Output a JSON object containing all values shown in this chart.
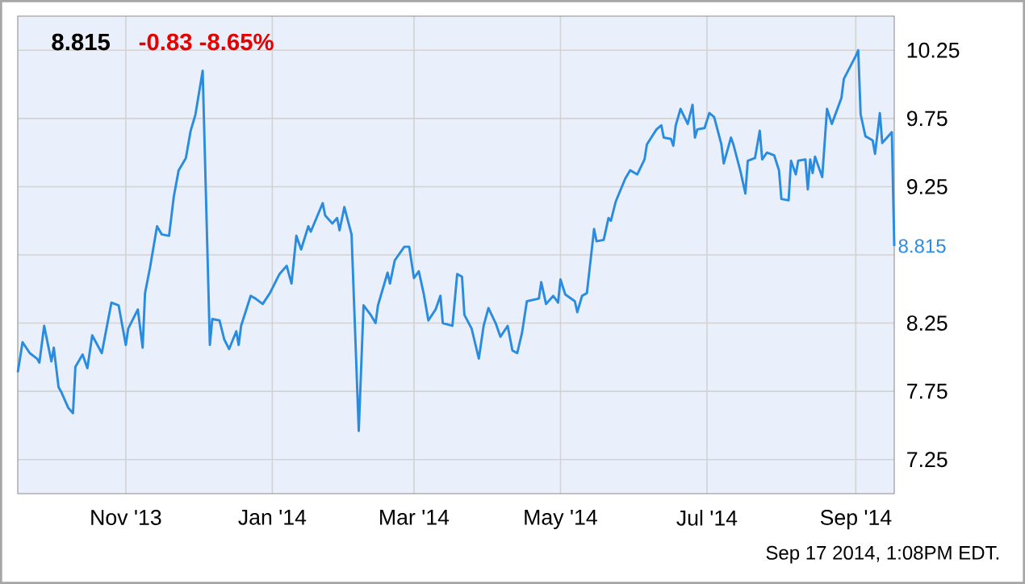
{
  "chart_data": {
    "type": "line",
    "title": "8.815",
    "subtitle": "-0.83  -8.65%",
    "annotations": [
      {
        "text": "8.815",
        "x": "2014-09-17",
        "y": 8.815
      },
      "Sep 17 2014, 1:08PM EDT."
    ],
    "x": [
      "2013-09-17",
      "2013-09-19",
      "2013-09-22",
      "2013-09-25",
      "2013-09-26",
      "2013-09-28",
      "2013-10-01",
      "2013-10-02",
      "2013-10-04",
      "2013-10-05",
      "2013-10-08",
      "2013-10-10",
      "2013-10-11",
      "2013-10-14",
      "2013-10-16",
      "2013-10-18",
      "2013-10-22",
      "2013-10-26",
      "2013-10-29",
      "2013-11-01",
      "2013-11-02",
      "2013-11-06",
      "2013-11-08",
      "2013-11-09",
      "2013-11-11",
      "2013-11-14",
      "2013-11-16",
      "2013-11-19",
      "2013-11-21",
      "2013-11-23",
      "2013-11-26",
      "2013-11-28",
      "2013-11-30",
      "2013-12-03",
      "2013-12-06",
      "2013-12-07",
      "2013-12-10",
      "2013-12-12",
      "2013-12-14",
      "2013-12-17",
      "2013-12-18",
      "2013-12-19",
      "2013-12-23",
      "2013-12-25",
      "2013-12-28",
      "2013-12-31",
      "2014-01-04",
      "2014-01-07",
      "2014-01-09",
      "2014-01-11",
      "2014-01-13",
      "2014-01-16",
      "2014-01-17",
      "2014-01-22",
      "2014-01-23",
      "2014-01-26",
      "2014-01-28",
      "2014-01-29",
      "2014-01-31",
      "2014-02-03",
      "2014-02-06",
      "2014-02-08",
      "2014-02-11",
      "2014-02-13",
      "2014-02-14",
      "2014-02-18",
      "2014-02-19",
      "2014-02-21",
      "2014-02-25",
      "2014-02-27",
      "2014-03-01",
      "2014-03-03",
      "2014-03-05",
      "2014-03-07",
      "2014-03-10",
      "2014-03-12",
      "2014-03-13",
      "2014-03-17",
      "2014-03-19",
      "2014-03-21",
      "2014-03-22",
      "2014-03-25",
      "2014-03-28",
      "2014-03-30",
      "2014-04-01",
      "2014-04-04",
      "2014-04-06",
      "2014-04-09",
      "2014-04-11",
      "2014-04-13",
      "2014-04-15",
      "2014-04-17",
      "2014-04-22",
      "2014-04-23",
      "2014-04-25",
      "2014-04-28",
      "2014-04-30",
      "2014-05-01",
      "2014-05-03",
      "2014-05-07",
      "2014-05-08",
      "2014-05-10",
      "2014-05-12",
      "2014-05-15",
      "2014-05-16",
      "2014-05-19",
      "2014-05-21",
      "2014-05-22",
      "2014-05-24",
      "2014-05-28",
      "2014-05-30",
      "2014-06-02",
      "2014-06-05",
      "2014-06-06",
      "2014-06-10",
      "2014-06-12",
      "2014-06-13",
      "2014-06-16",
      "2014-06-17",
      "2014-06-18",
      "2014-06-20",
      "2014-06-23",
      "2014-06-25",
      "2014-06-26",
      "2014-06-27",
      "2014-06-30",
      "2014-07-02",
      "2014-07-04",
      "2014-07-07",
      "2014-07-08",
      "2014-07-11",
      "2014-07-12",
      "2014-07-15",
      "2014-07-17",
      "2014-07-18",
      "2014-07-21",
      "2014-07-23",
      "2014-07-24",
      "2014-07-26",
      "2014-07-29",
      "2014-07-31",
      "2014-08-01",
      "2014-08-04",
      "2014-08-05",
      "2014-08-07",
      "2014-08-08",
      "2014-08-11",
      "2014-08-12",
      "2014-08-13",
      "2014-08-14",
      "2014-08-15",
      "2014-08-18",
      "2014-08-20",
      "2014-08-22",
      "2014-08-26",
      "2014-08-27",
      "2014-09-01",
      "2014-09-02",
      "2014-09-03",
      "2014-09-05",
      "2014-09-08",
      "2014-09-09",
      "2014-09-11",
      "2014-09-12",
      "2014-09-16",
      "2014-09-17"
    ],
    "series": [
      {
        "color": "#2a8ce0",
        "values": [
          7.89,
          8.11,
          8.03,
          7.99,
          7.96,
          8.23,
          7.97,
          8.07,
          7.78,
          7.75,
          7.63,
          7.59,
          7.93,
          8.02,
          7.92,
          8.16,
          8.03,
          8.4,
          8.38,
          8.09,
          8.21,
          8.35,
          8.07,
          8.47,
          8.65,
          8.96,
          8.9,
          8.89,
          9.18,
          9.37,
          9.46,
          9.66,
          9.78,
          10.1,
          8.09,
          8.28,
          8.27,
          8.13,
          8.06,
          8.19,
          8.09,
          8.23,
          8.45,
          8.43,
          8.39,
          8.47,
          8.61,
          8.67,
          8.54,
          8.89,
          8.79,
          8.96,
          8.92,
          9.13,
          9.04,
          8.98,
          9.02,
          8.93,
          9.1,
          8.9,
          7.46,
          8.38,
          8.31,
          8.25,
          8.38,
          8.62,
          8.54,
          8.71,
          8.81,
          8.81,
          8.58,
          8.63,
          8.47,
          8.27,
          8.35,
          8.45,
          8.25,
          8.23,
          8.61,
          8.59,
          8.31,
          8.21,
          7.99,
          8.23,
          8.36,
          8.25,
          8.15,
          8.23,
          8.05,
          8.03,
          8.18,
          8.41,
          8.43,
          8.55,
          8.39,
          8.45,
          8.4,
          8.57,
          8.46,
          8.41,
          8.33,
          8.45,
          8.47,
          8.94,
          8.85,
          8.86,
          9.02,
          9.0,
          9.14,
          9.31,
          9.37,
          9.34,
          9.45,
          9.56,
          9.67,
          9.7,
          9.61,
          9.6,
          9.55,
          9.7,
          9.82,
          9.71,
          9.85,
          9.61,
          9.67,
          9.68,
          9.79,
          9.76,
          9.56,
          9.42,
          9.61,
          9.56,
          9.36,
          9.2,
          9.44,
          9.46,
          9.66,
          9.45,
          9.5,
          9.48,
          9.37,
          9.16,
          9.15,
          9.44,
          9.34,
          9.44,
          9.45,
          9.23,
          9.45,
          9.35,
          9.47,
          9.32,
          9.82,
          9.71,
          9.9,
          10.04,
          10.21,
          10.25,
          9.78,
          9.62,
          9.59,
          9.49,
          9.79,
          9.57,
          9.65,
          8.815
        ]
      }
    ],
    "xlim": [
      "2013-09-17",
      "2014-09-17"
    ],
    "xticks": [
      {
        "value": "2013-11-01",
        "label": "Nov '13"
      },
      {
        "value": "2014-01-01",
        "label": "Jan '14"
      },
      {
        "value": "2014-03-01",
        "label": "Mar '14"
      },
      {
        "value": "2014-05-01",
        "label": "May '14"
      },
      {
        "value": "2014-07-01",
        "label": "Jul '14"
      },
      {
        "value": "2014-09-01",
        "label": "Sep '14"
      }
    ],
    "ylim": [
      7.0,
      10.5
    ],
    "yticks": [
      7.25,
      7.75,
      8.25,
      {
        "value": 8.75,
        "label": null
      },
      9.25,
      9.75,
      10.25
    ],
    "grid": true,
    "marker": "none",
    "line_style": "solid"
  }
}
